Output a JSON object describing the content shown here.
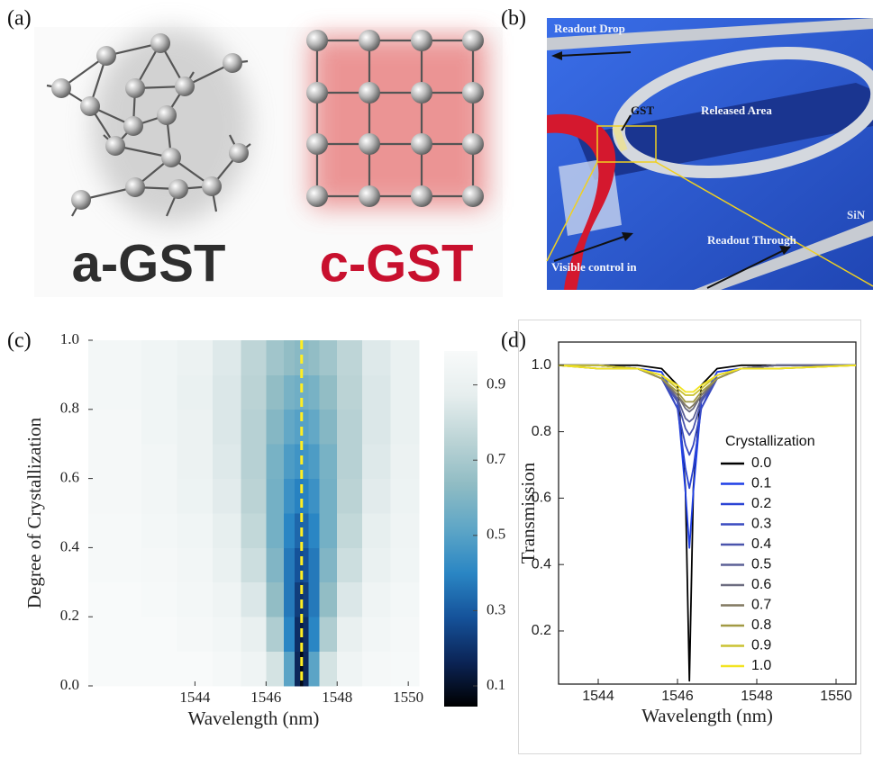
{
  "panel_labels": [
    "(a)",
    "(b)",
    "(c)",
    "(d)"
  ],
  "figure_a": {
    "left_label": "a-GST",
    "right_label": "c-GST"
  },
  "figure_b": {
    "labels": [
      "Readout Drop",
      "GST",
      "Released Area",
      "SiN",
      "Readout Through",
      "Visible control in"
    ]
  },
  "chart_data": [
    {
      "type": "heatmap",
      "xlabel": "Wavelength (nm)",
      "ylabel": "Degree of Crystallization",
      "x_edges": [
        1541,
        1542.5,
        1543.5,
        1544.5,
        1545.3,
        1546,
        1546.5,
        1546.8,
        1546.95,
        1547.05,
        1547.2,
        1547.5,
        1548,
        1548.7,
        1549.5,
        1550.3
      ],
      "y_edges": [
        0,
        0.1,
        0.2,
        0.3,
        0.4,
        0.5,
        0.6,
        0.7,
        0.8,
        0.9,
        1
      ],
      "z": [
        [
          1.0,
          0.99,
          0.99,
          0.97,
          0.93,
          0.82,
          0.51,
          0.17,
          0.08,
          0.17,
          0.51,
          0.82,
          0.93,
          0.97,
          0.98
        ],
        [
          0.99,
          0.99,
          0.97,
          0.95,
          0.89,
          0.72,
          0.4,
          0.19,
          0.14,
          0.19,
          0.4,
          0.72,
          0.89,
          0.95,
          0.97
        ],
        [
          0.99,
          0.98,
          0.96,
          0.93,
          0.84,
          0.64,
          0.37,
          0.23,
          0.2,
          0.23,
          0.37,
          0.64,
          0.84,
          0.93,
          0.96
        ],
        [
          0.98,
          0.97,
          0.95,
          0.9,
          0.8,
          0.6,
          0.37,
          0.28,
          0.26,
          0.28,
          0.37,
          0.6,
          0.8,
          0.9,
          0.94
        ],
        [
          0.98,
          0.96,
          0.94,
          0.88,
          0.77,
          0.57,
          0.4,
          0.33,
          0.32,
          0.33,
          0.4,
          0.57,
          0.77,
          0.88,
          0.93
        ],
        [
          0.97,
          0.95,
          0.92,
          0.86,
          0.75,
          0.57,
          0.44,
          0.39,
          0.38,
          0.39,
          0.44,
          0.57,
          0.75,
          0.86,
          0.92
        ],
        [
          0.97,
          0.95,
          0.91,
          0.85,
          0.74,
          0.58,
          0.48,
          0.45,
          0.44,
          0.45,
          0.48,
          0.58,
          0.74,
          0.85,
          0.91
        ],
        [
          0.97,
          0.94,
          0.91,
          0.84,
          0.74,
          0.61,
          0.53,
          0.5,
          0.5,
          0.5,
          0.53,
          0.61,
          0.74,
          0.84,
          0.9
        ],
        [
          0.96,
          0.94,
          0.9,
          0.84,
          0.75,
          0.64,
          0.58,
          0.56,
          0.56,
          0.56,
          0.58,
          0.64,
          0.75,
          0.84,
          0.9
        ],
        [
          0.96,
          0.94,
          0.91,
          0.85,
          0.76,
          0.68,
          0.64,
          0.62,
          0.62,
          0.62,
          0.64,
          0.68,
          0.76,
          0.85,
          0.9
        ]
      ],
      "xlim": [
        1541,
        1550.3
      ],
      "ylim": [
        0,
        1
      ],
      "xticks": [
        1544,
        1546,
        1548,
        1550
      ],
      "yticks": [
        {
          "value": 0,
          "label": "0.0"
        },
        0.2,
        0.4,
        0.6,
        0.8,
        {
          "value": 1,
          "label": "1.0"
        }
      ],
      "colorbar": {
        "zlim": [
          0.045,
          0.99
        ],
        "ticks": [
          0.1,
          0.3,
          0.5,
          0.7,
          0.9
        ],
        "colormap": [
          "#000000",
          "#0b2456",
          "#15529a",
          "#2a86c4",
          "#5ea6c6",
          "#90bcc4",
          "#bcd4d6",
          "#e6eeee",
          "#f8fafa"
        ]
      },
      "vline": {
        "x": 1547,
        "color": "#ffee22"
      }
    },
    {
      "type": "line",
      "xlabel": "Wavelength (nm)",
      "ylabel": "Transmission",
      "x": [
        1543,
        1544,
        1545,
        1545.6,
        1546,
        1546.2,
        1546.3,
        1546.4,
        1546.6,
        1547,
        1547.6,
        1548.5,
        1550.5
      ],
      "series": [
        {
          "name": "0.0",
          "color": "#000000",
          "values": [
            1.0,
            1.0,
            1.0,
            0.99,
            0.94,
            0.63,
            0.05,
            0.63,
            0.94,
            0.99,
            1.0,
            1.0,
            1.0
          ]
        },
        {
          "name": "0.1",
          "color": "#1e3ee6",
          "values": [
            1.0,
            1.0,
            0.99,
            0.98,
            0.89,
            0.62,
            0.45,
            0.62,
            0.89,
            0.98,
            0.99,
            1.0,
            1.0
          ]
        },
        {
          "name": "0.2",
          "color": "#2b44d4",
          "values": [
            1.0,
            1.0,
            0.99,
            0.97,
            0.87,
            0.69,
            0.63,
            0.69,
            0.87,
            0.97,
            0.99,
            1.0,
            1.0
          ]
        },
        {
          "name": "0.3",
          "color": "#3a4bc0",
          "values": [
            1.0,
            1.0,
            0.99,
            0.96,
            0.87,
            0.76,
            0.73,
            0.76,
            0.87,
            0.96,
            0.99,
            1.0,
            1.0
          ]
        },
        {
          "name": "0.4",
          "color": "#4a54ac",
          "values": [
            1.0,
            1.0,
            0.99,
            0.96,
            0.89,
            0.81,
            0.79,
            0.81,
            0.89,
            0.96,
            0.99,
            1.0,
            1.0
          ]
        },
        {
          "name": "0.5",
          "color": "#5c6096",
          "values": [
            1.0,
            1.0,
            0.99,
            0.96,
            0.9,
            0.84,
            0.83,
            0.84,
            0.9,
            0.96,
            0.99,
            1.0,
            1.0
          ]
        },
        {
          "name": "0.6",
          "color": "#6c6c80",
          "values": [
            1.0,
            1.0,
            0.99,
            0.96,
            0.91,
            0.87,
            0.86,
            0.87,
            0.91,
            0.96,
            0.99,
            1.0,
            1.0
          ]
        },
        {
          "name": "0.7",
          "color": "#827a62",
          "values": [
            1.0,
            0.99,
            0.99,
            0.96,
            0.91,
            0.88,
            0.87,
            0.88,
            0.91,
            0.96,
            0.99,
            0.99,
            1.0
          ]
        },
        {
          "name": "0.8",
          "color": "#a29a44",
          "values": [
            1.0,
            0.99,
            0.99,
            0.96,
            0.92,
            0.89,
            0.89,
            0.89,
            0.92,
            0.96,
            0.99,
            0.99,
            1.0
          ]
        },
        {
          "name": "0.9",
          "color": "#cac232",
          "values": [
            1.0,
            1.0,
            0.99,
            0.97,
            0.93,
            0.91,
            0.91,
            0.91,
            0.93,
            0.97,
            0.99,
            0.99,
            1.0
          ]
        },
        {
          "name": "1.0",
          "color": "#f2e422",
          "values": [
            1.0,
            0.99,
            0.99,
            0.97,
            0.94,
            0.92,
            0.92,
            0.92,
            0.94,
            0.97,
            0.99,
            0.99,
            1.0
          ]
        }
      ],
      "xlim": [
        1543,
        1550.5
      ],
      "ylim": [
        0.04,
        1.07
      ],
      "xticks": [
        1544,
        1546,
        1548,
        1550
      ],
      "yticks": [
        0.2,
        0.4,
        0.6,
        0.8,
        {
          "value": 1,
          "label": "1.0"
        }
      ],
      "legend_title": "Crystallization",
      "legend": "right"
    }
  ]
}
